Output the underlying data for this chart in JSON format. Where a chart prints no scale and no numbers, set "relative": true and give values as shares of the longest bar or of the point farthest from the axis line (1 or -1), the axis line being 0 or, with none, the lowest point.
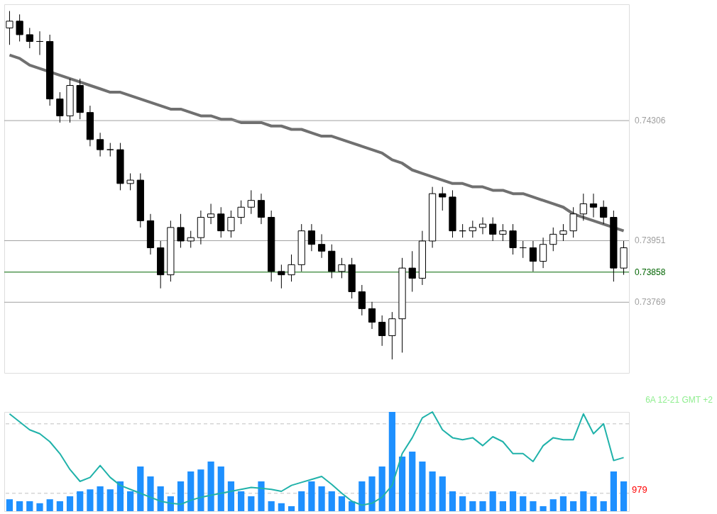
{
  "chart_data": [
    {
      "type": "candlestick",
      "categories": [
        null,
        null,
        null,
        null,
        null,
        null,
        null,
        null,
        null,
        null,
        null,
        null,
        null,
        null,
        null,
        null,
        null,
        null,
        null,
        null,
        null,
        null,
        null,
        null,
        null,
        null,
        null,
        null,
        null,
        null,
        null,
        null,
        null,
        null,
        null,
        null,
        null,
        null,
        null,
        null,
        null,
        null,
        null,
        null,
        null,
        null,
        null,
        null,
        null,
        null,
        null,
        null,
        null,
        null,
        null,
        null,
        null,
        null,
        null,
        null,
        null,
        null
      ],
      "ohlc": [
        [
          0.7458,
          0.7463,
          0.7453,
          0.746
        ],
        [
          0.746,
          0.7462,
          0.7454,
          0.7456
        ],
        [
          0.7456,
          0.7458,
          0.7452,
          0.7454
        ],
        [
          0.7454,
          0.7457,
          0.745,
          0.7454
        ],
        [
          0.7454,
          0.7456,
          0.7435,
          0.7437
        ],
        [
          0.7437,
          0.7439,
          0.743,
          0.7432
        ],
        [
          0.7432,
          0.7443,
          0.743,
          0.7441
        ],
        [
          0.7441,
          0.7443,
          0.7431,
          0.7433
        ],
        [
          0.7433,
          0.7435,
          0.7423,
          0.7425
        ],
        [
          0.7425,
          0.7427,
          0.742,
          0.7422
        ],
        [
          0.7422,
          0.7424,
          0.742,
          0.7422
        ],
        [
          0.7422,
          0.7424,
          0.741,
          0.7412
        ],
        [
          0.7412,
          0.7415,
          0.741,
          0.7413
        ],
        [
          0.7413,
          0.7415,
          0.7399,
          0.7401
        ],
        [
          0.7401,
          0.7403,
          0.7391,
          0.7393
        ],
        [
          0.7393,
          0.7395,
          0.7381,
          0.7385
        ],
        [
          0.7385,
          0.7401,
          0.7383,
          0.7399
        ],
        [
          0.7399,
          0.7403,
          0.7393,
          0.7395
        ],
        [
          0.7395,
          0.7398,
          0.7393,
          0.7396
        ],
        [
          0.7396,
          0.7404,
          0.7394,
          0.7402
        ],
        [
          0.7402,
          0.7406,
          0.74,
          0.7403
        ],
        [
          0.7403,
          0.7405,
          0.7396,
          0.7398
        ],
        [
          0.7398,
          0.7404,
          0.7396,
          0.7402
        ],
        [
          0.7402,
          0.7407,
          0.74,
          0.7405
        ],
        [
          0.7405,
          0.741,
          0.7403,
          0.7407
        ],
        [
          0.7407,
          0.7409,
          0.74,
          0.7402
        ],
        [
          0.7402,
          0.7404,
          0.7383,
          0.7386
        ],
        [
          0.7386,
          0.7388,
          0.7381,
          0.7385
        ],
        [
          0.7385,
          0.7391,
          0.7383,
          0.7388
        ],
        [
          0.7388,
          0.74,
          0.7386,
          0.7398
        ],
        [
          0.7398,
          0.74,
          0.7392,
          0.7394
        ],
        [
          0.7394,
          0.7397,
          0.739,
          0.7392
        ],
        [
          0.7392,
          0.7394,
          0.7384,
          0.7386
        ],
        [
          0.7386,
          0.739,
          0.7384,
          0.7388
        ],
        [
          0.7388,
          0.739,
          0.7378,
          0.738
        ],
        [
          0.738,
          0.7382,
          0.7373,
          0.7375
        ],
        [
          0.7375,
          0.7377,
          0.7369,
          0.7371
        ],
        [
          0.7371,
          0.7373,
          0.7364,
          0.7367
        ],
        [
          0.7367,
          0.7374,
          0.736,
          0.7372
        ],
        [
          0.7372,
          0.739,
          0.7362,
          0.7387
        ],
        [
          0.7387,
          0.7392,
          0.738,
          0.7384
        ],
        [
          0.7384,
          0.7398,
          0.7382,
          0.7395
        ],
        [
          0.7395,
          0.7411,
          0.7393,
          0.7409
        ],
        [
          0.7409,
          0.7411,
          0.7404,
          0.7408
        ],
        [
          0.7408,
          0.741,
          0.7396,
          0.7398
        ],
        [
          0.7398,
          0.74,
          0.7396,
          0.7398
        ],
        [
          0.7398,
          0.7401,
          0.7396,
          0.7399
        ],
        [
          0.7399,
          0.7402,
          0.7397,
          0.74
        ],
        [
          0.74,
          0.7402,
          0.7395,
          0.7397
        ],
        [
          0.7397,
          0.74,
          0.7395,
          0.7398
        ],
        [
          0.7398,
          0.74,
          0.7391,
          0.7393
        ],
        [
          0.7393,
          0.7395,
          0.739,
          0.7393
        ],
        [
          0.7393,
          0.7395,
          0.7386,
          0.7389
        ],
        [
          0.7389,
          0.7396,
          0.7387,
          0.7394
        ],
        [
          0.7394,
          0.7399,
          0.7392,
          0.7397
        ],
        [
          0.7397,
          0.74,
          0.7395,
          0.7398
        ],
        [
          0.7398,
          0.7405,
          0.7396,
          0.7403
        ],
        [
          0.7403,
          0.7409,
          0.7401,
          0.7406
        ],
        [
          0.7406,
          0.7409,
          0.7402,
          0.7405
        ],
        [
          0.7405,
          0.7407,
          0.74,
          0.7402
        ],
        [
          0.7402,
          0.7404,
          0.7383,
          0.7387
        ],
        [
          0.7387,
          0.7395,
          0.7385,
          0.7393
        ]
      ],
      "series": [
        {
          "type": "line",
          "color": "#707070",
          "values": [
            0.745,
            0.7449,
            0.7447,
            0.7446,
            0.7445,
            0.7444,
            0.7443,
            0.7442,
            0.7441,
            0.744,
            0.7439,
            0.7439,
            0.7438,
            0.7437,
            0.7436,
            0.7435,
            0.7434,
            0.7434,
            0.7433,
            0.7432,
            0.7432,
            0.7431,
            0.7431,
            0.743,
            0.743,
            0.743,
            0.7429,
            0.7429,
            0.7428,
            0.7428,
            0.7427,
            0.7426,
            0.7426,
            0.7425,
            0.7424,
            0.7423,
            0.7422,
            0.7421,
            0.7419,
            0.7418,
            0.7416,
            0.7415,
            0.7414,
            0.7413,
            0.7412,
            0.7412,
            0.7411,
            0.7411,
            0.741,
            0.741,
            0.7409,
            0.7409,
            0.7408,
            0.7407,
            0.7406,
            0.7405,
            0.7403,
            0.7402,
            0.7401,
            0.74,
            0.7399,
            0.7398
          ]
        }
      ],
      "ylim": [
        0.7356,
        0.7465
      ],
      "tick_labels": false,
      "ref_lines": [
        {
          "axis": "y",
          "value": 0.74306,
          "label": "0.74306",
          "color": "#a0a0a0"
        },
        {
          "axis": "y",
          "value": 0.73951,
          "label": "0.73951",
          "color": "#a0a0a0"
        },
        {
          "axis": "y",
          "value": 0.73769,
          "label": "0.73769",
          "color": "#a0a0a0"
        },
        {
          "axis": "y",
          "value": 0.73858,
          "label": "0.73858",
          "color": "#006400"
        }
      ]
    },
    {
      "type": "bar",
      "relative": true,
      "categories": [
        null,
        null,
        null,
        null,
        null,
        null,
        null,
        null,
        null,
        null,
        null,
        null,
        null,
        null,
        null,
        null,
        null,
        null,
        null,
        null,
        null,
        null,
        null,
        null,
        null,
        null,
        null,
        null,
        null,
        null,
        null,
        null,
        null,
        null,
        null,
        null,
        null,
        null,
        null,
        null,
        null,
        null,
        null,
        null,
        null,
        null,
        null,
        null,
        null,
        null,
        null,
        null,
        null,
        null,
        null,
        null,
        null,
        null,
        null,
        null,
        null,
        null
      ],
      "series": [
        {
          "type": "bar",
          "color": "#1e90ff",
          "values": [
            0.12,
            0.1,
            0.1,
            0.08,
            0.12,
            0.1,
            0.15,
            0.2,
            0.22,
            0.25,
            0.22,
            0.3,
            0.2,
            0.45,
            0.35,
            0.25,
            0.15,
            0.3,
            0.4,
            0.42,
            0.5,
            0.45,
            0.3,
            0.2,
            0.15,
            0.3,
            0.1,
            0.08,
            0.05,
            0.2,
            0.3,
            0.25,
            0.2,
            0.15,
            0.1,
            0.3,
            0.35,
            0.45,
            1.0,
            0.55,
            0.6,
            0.5,
            0.4,
            0.35,
            0.2,
            0.15,
            0.1,
            0.1,
            0.2,
            0.1,
            0.2,
            0.15,
            0.1,
            0.05,
            0.12,
            0.15,
            0.1,
            0.2,
            0.15,
            0.1,
            0.4,
            0.3
          ]
        },
        {
          "type": "line",
          "color": "#20b2aa",
          "values": [
            0.98,
            0.9,
            0.82,
            0.78,
            0.7,
            0.58,
            0.42,
            0.3,
            0.34,
            0.46,
            0.34,
            0.26,
            0.22,
            0.18,
            0.14,
            0.1,
            0.08,
            0.07,
            0.11,
            0.14,
            0.16,
            0.18,
            0.2,
            0.22,
            0.24,
            0.23,
            0.22,
            0.2,
            0.26,
            0.29,
            0.32,
            0.35,
            0.27,
            0.18,
            0.1,
            0.06,
            0.08,
            0.14,
            0.26,
            0.58,
            0.74,
            0.94,
            1.0,
            0.82,
            0.74,
            0.72,
            0.74,
            0.66,
            0.75,
            0.7,
            0.58,
            0.58,
            0.5,
            0.66,
            0.74,
            0.72,
            0.72,
            0.98,
            0.78,
            0.88,
            0.51,
            0.54
          ]
        }
      ],
      "ref_lines": [
        {
          "axis": "y",
          "value": 0.88,
          "color": "#c0c0c0",
          "line_style": "dashed"
        },
        {
          "axis": "y",
          "value": 0.18,
          "color": "#c0c0c0",
          "line_style": "dashed"
        }
      ],
      "annotations": [
        "6A 12-21 GMT +2",
        "979"
      ],
      "tick_labels": false
    }
  ]
}
